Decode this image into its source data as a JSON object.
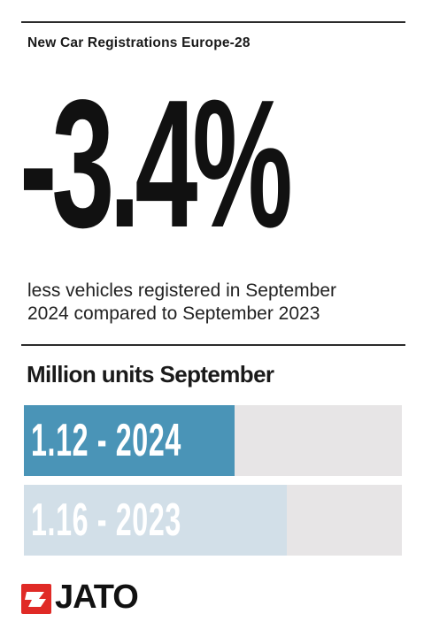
{
  "header": {
    "subtitle": "New Car Registrations Europe-28"
  },
  "headline": {
    "value": "-3.4%"
  },
  "description": {
    "line1": "less vehicles registered in September",
    "line2": "2024 compared to September 2023"
  },
  "chart_data": {
    "type": "bar",
    "title": "Million units September",
    "categories": [
      "2024",
      "2023"
    ],
    "values": [
      1.12,
      1.16
    ],
    "labels": [
      "1.12 - 2024",
      "1.16 - 2023"
    ],
    "colors": [
      "#4a94b7",
      "#d2dfe8"
    ],
    "track_color": "#e7e5e6",
    "orientation": "horizontal"
  },
  "brand": {
    "logo_text": "JATO",
    "color": "#e02a26"
  }
}
